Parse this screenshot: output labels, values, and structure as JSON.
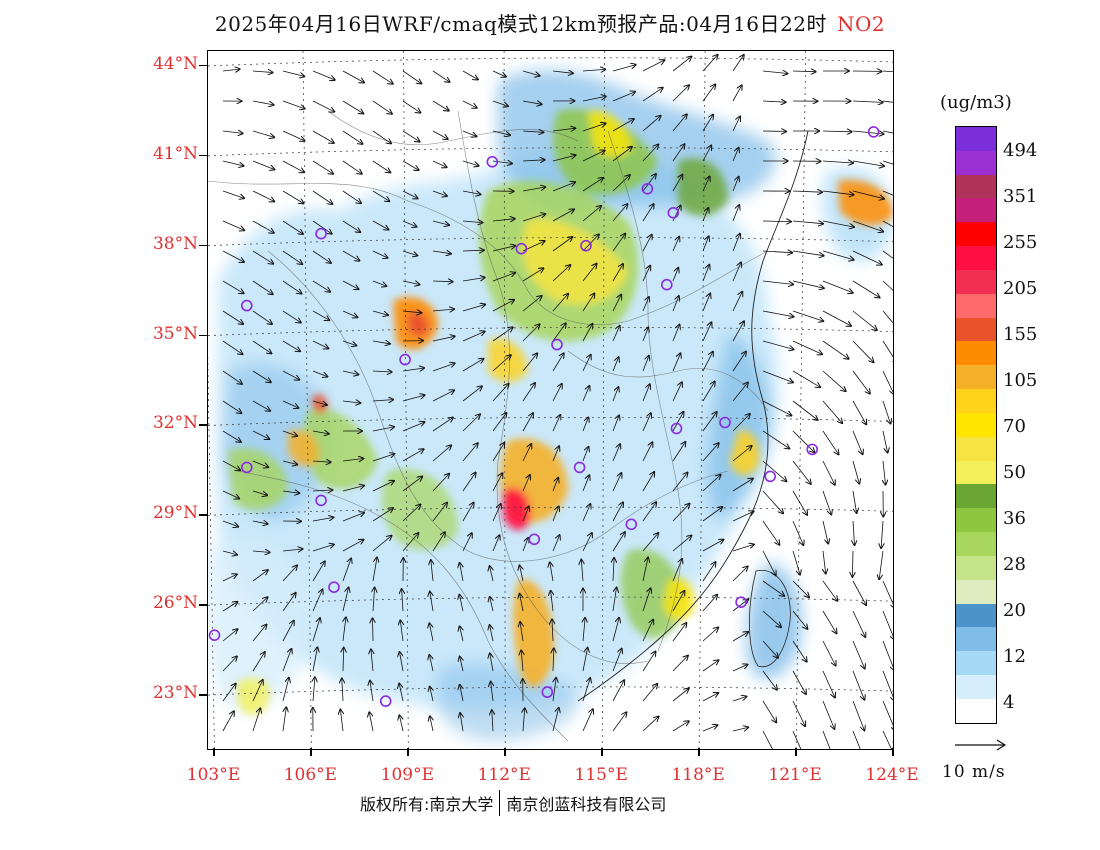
{
  "title": {
    "main": "2025年04月16日WRF/cmaq模式12km预报产品:04月16日22时",
    "species": "NO2"
  },
  "axes": {
    "lat_labels": [
      "44°N",
      "41°N",
      "38°N",
      "35°N",
      "32°N",
      "29°N",
      "26°N",
      "23°N"
    ],
    "lon_labels": [
      "103°E",
      "106°E",
      "109°E",
      "112°E",
      "115°E",
      "118°E",
      "121°E",
      "124°E"
    ]
  },
  "legend": {
    "unit": "(ug/m3)",
    "colors": [
      "#ffffff",
      "#d6eefb",
      "#a6d9f6",
      "#7fbce8",
      "#4b93c8",
      "#deecc0",
      "#c6e58a",
      "#a8d55c",
      "#8dc63f",
      "#6aa531",
      "#f3f05a",
      "#f6e443",
      "#ffe600",
      "#ffd21c",
      "#f5b02a",
      "#ff8c00",
      "#e9532b",
      "#ff6b6b",
      "#f22f52",
      "#ff1044",
      "#ff0000",
      "#c51f7a",
      "#b0335a",
      "#9b2fd1",
      "#7a2fd8"
    ],
    "labels": [
      "494",
      "351",
      "255",
      "205",
      "155",
      "105",
      "70",
      "50",
      "36",
      "28",
      "20",
      "12",
      "4"
    ]
  },
  "reference_vector": {
    "label": "10 m/s"
  },
  "footer": {
    "left": "版权所有:南京大学",
    "right": "南京创蓝科技有限公司"
  },
  "map_data": {
    "lat_range": [
      21.2,
      44.5
    ],
    "lon_range": [
      102.8,
      124.0
    ],
    "circle_color": "#8a2be2",
    "monitoring_sites": [
      {
        "lon": 103.0,
        "lat": 25.0
      },
      {
        "lon": 104.0,
        "lat": 36.0
      },
      {
        "lon": 104.0,
        "lat": 30.6
      },
      {
        "lon": 106.3,
        "lat": 38.4
      },
      {
        "lon": 106.3,
        "lat": 29.5
      },
      {
        "lon": 106.7,
        "lat": 26.6
      },
      {
        "lon": 108.9,
        "lat": 34.2
      },
      {
        "lon": 108.3,
        "lat": 22.8
      },
      {
        "lon": 111.6,
        "lat": 40.8
      },
      {
        "lon": 112.5,
        "lat": 37.9
      },
      {
        "lon": 113.6,
        "lat": 34.7
      },
      {
        "lon": 114.3,
        "lat": 30.6
      },
      {
        "lon": 112.9,
        "lat": 28.2
      },
      {
        "lon": 113.3,
        "lat": 23.1
      },
      {
        "lon": 114.5,
        "lat": 38.0
      },
      {
        "lon": 116.4,
        "lat": 39.9
      },
      {
        "lon": 117.2,
        "lat": 39.1
      },
      {
        "lon": 117.0,
        "lat": 36.7
      },
      {
        "lon": 117.3,
        "lat": 31.9
      },
      {
        "lon": 118.8,
        "lat": 32.1
      },
      {
        "lon": 120.2,
        "lat": 30.3
      },
      {
        "lon": 121.5,
        "lat": 31.2
      },
      {
        "lon": 115.9,
        "lat": 28.7
      },
      {
        "lon": 119.3,
        "lat": 26.1
      },
      {
        "lon": 123.4,
        "lat": 41.8
      }
    ]
  }
}
